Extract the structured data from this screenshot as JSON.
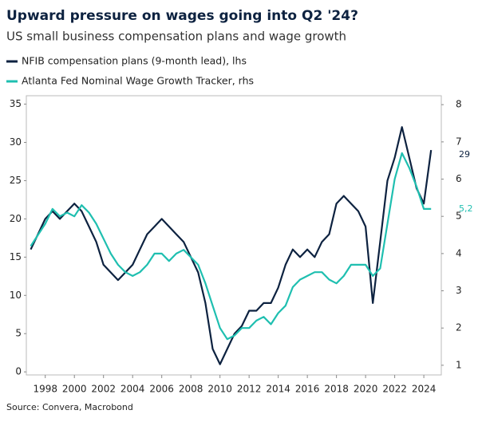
{
  "chart_data": {
    "type": "line",
    "title": "Upward pressure on wages going into Q2 '24?",
    "subtitle": "US small business compensation plans and wage growth",
    "source": "Source: Convera, Macrobond",
    "x": [
      1997.0,
      1997.5,
      1998.0,
      1998.5,
      1999.0,
      1999.5,
      2000.0,
      2000.5,
      2001.0,
      2001.5,
      2002.0,
      2002.5,
      2003.0,
      2003.5,
      2004.0,
      2004.5,
      2005.0,
      2005.5,
      2006.0,
      2006.5,
      2007.0,
      2007.5,
      2008.0,
      2008.5,
      2009.0,
      2009.5,
      2010.0,
      2010.5,
      2011.0,
      2011.5,
      2012.0,
      2012.5,
      2013.0,
      2013.5,
      2014.0,
      2014.5,
      2015.0,
      2015.5,
      2016.0,
      2016.5,
      2017.0,
      2017.5,
      2018.0,
      2018.5,
      2019.0,
      2019.5,
      2020.0,
      2020.5,
      2021.0,
      2021.5,
      2022.0,
      2022.5,
      2023.0,
      2023.5,
      2024.0,
      2024.5
    ],
    "series": [
      {
        "name": "NFIB compensation plans (9-month lead), lhs",
        "color": "#0d2240",
        "axis": "y",
        "end_label": "29",
        "values": [
          16,
          18,
          20,
          21,
          20,
          21,
          22,
          21,
          19,
          17,
          14,
          13,
          12,
          13,
          14,
          16,
          18,
          19,
          20,
          19,
          18,
          17,
          15,
          13,
          9,
          3,
          1,
          3,
          5,
          6,
          8,
          8,
          9,
          9,
          11,
          14,
          16,
          15,
          16,
          15,
          17,
          18,
          22,
          23,
          22,
          21,
          19,
          9,
          17,
          25,
          28,
          32,
          28,
          24,
          22,
          29
        ]
      },
      {
        "name": "Atlanta Fed Nominal Wage Growth Tracker, rhs",
        "color": "#1fbfb0",
        "axis": "y2",
        "end_label": "5,2",
        "values": [
          4.2,
          4.5,
          4.8,
          5.2,
          5.0,
          5.1,
          5.0,
          5.3,
          5.1,
          4.8,
          4.4,
          4.0,
          3.7,
          3.5,
          3.4,
          3.5,
          3.7,
          4.0,
          4.0,
          3.8,
          4.0,
          4.1,
          3.9,
          3.7,
          3.2,
          2.6,
          2.0,
          1.7,
          1.8,
          2.0,
          2.0,
          2.2,
          2.3,
          2.1,
          2.4,
          2.6,
          3.1,
          3.3,
          3.4,
          3.5,
          3.5,
          3.3,
          3.2,
          3.4,
          3.7,
          3.7,
          3.7,
          3.4,
          3.6,
          4.8,
          6.0,
          6.7,
          6.3,
          5.8,
          5.2,
          5.2
        ]
      }
    ],
    "xlim": [
      1996.7,
      2025.2
    ],
    "xticks": [
      1998,
      2000,
      2002,
      2004,
      2006,
      2008,
      2010,
      2012,
      2014,
      2016,
      2018,
      2020,
      2022,
      2024
    ],
    "ylim": [
      -0.4,
      36.1
    ],
    "yticks": [
      0,
      5,
      10,
      15,
      20,
      25,
      30,
      35
    ],
    "y2lim": [
      0.74,
      8.24
    ],
    "y2ticks": [
      1,
      2,
      3,
      4,
      5,
      6,
      7,
      8
    ]
  }
}
